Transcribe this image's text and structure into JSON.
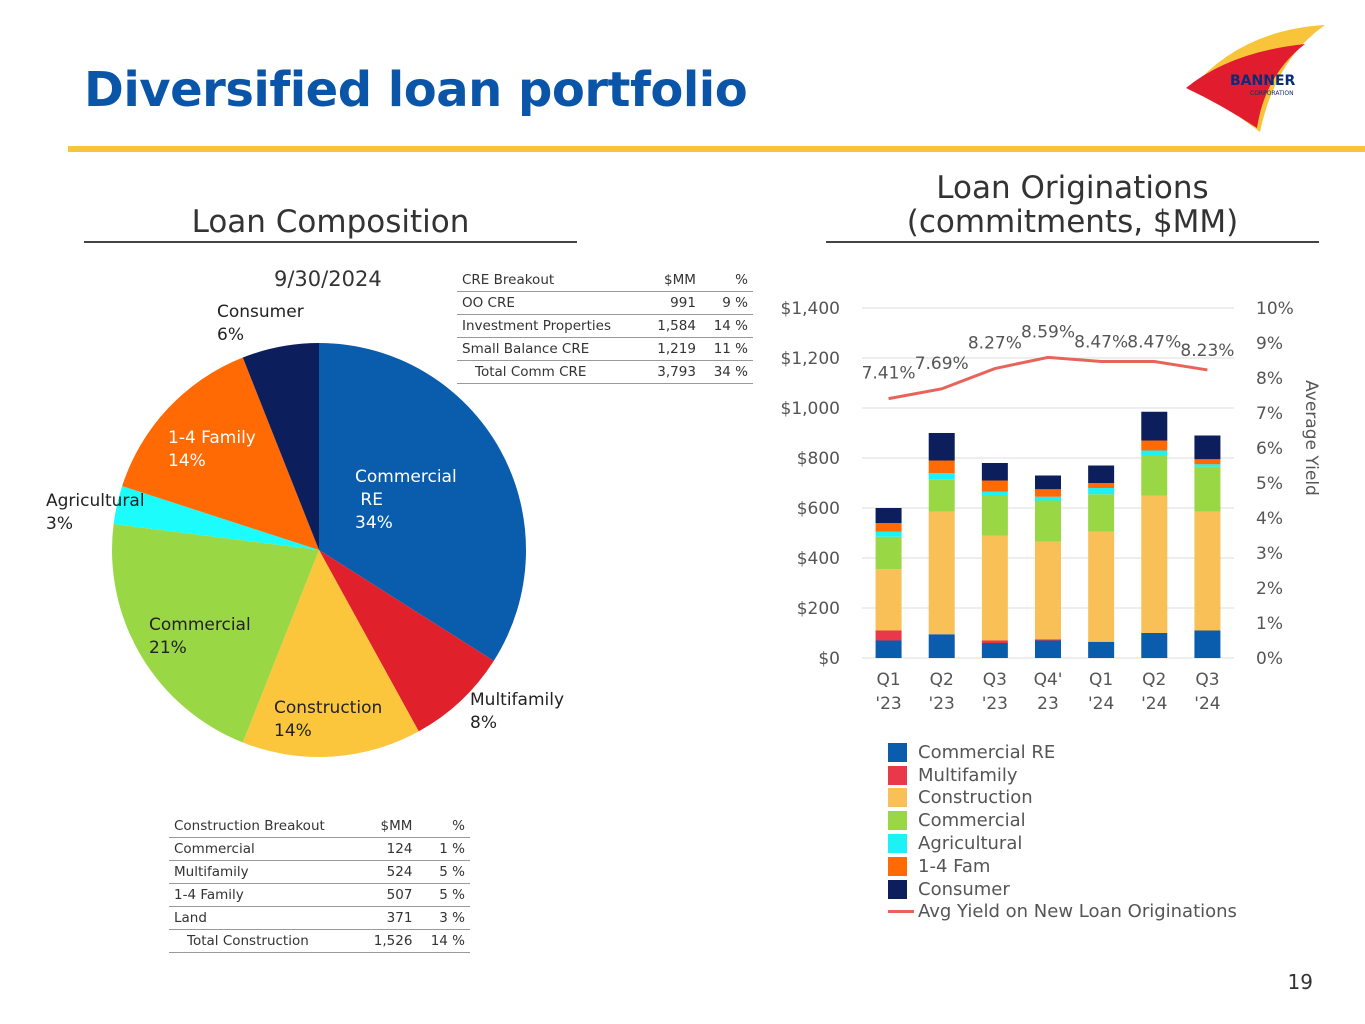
{
  "page": {
    "title": "Diversified loan portfolio",
    "page_number": "19",
    "logo_text": "BANNER",
    "logo_subtext": "CORPORATION",
    "accent": "#0a55a8",
    "rule_color": "#f8c53a"
  },
  "left": {
    "section_title": "Loan Composition",
    "date": "9/30/2024"
  },
  "right": {
    "section_title_line1": "Loan Originations",
    "section_title_line2": "(commitments, $MM)",
    "y2_title": "Average Yield",
    "line_legend": "Avg Yield on New Loan Originations"
  },
  "cre_table": {
    "headers": [
      "CRE Breakout",
      "$MM",
      "%"
    ],
    "rows": [
      [
        "OO CRE",
        "991",
        "9 %"
      ],
      [
        "Investment Properties",
        "1,584",
        "14 %"
      ],
      [
        "Small Balance CRE",
        "1,219",
        "11 %"
      ],
      [
        "Total Comm CRE",
        "3,793",
        "34 %"
      ]
    ]
  },
  "construction_table": {
    "headers": [
      "Construction Breakout",
      "$MM",
      "%"
    ],
    "rows": [
      [
        "Commercial",
        "124",
        "1 %"
      ],
      [
        "Multifamily",
        "524",
        "5 %"
      ],
      [
        "1-4 Family",
        "507",
        "5 %"
      ],
      [
        "Land",
        "371",
        "3 %"
      ],
      [
        "Total Construction",
        "1,526",
        "14 %"
      ]
    ]
  },
  "chart_data": [
    {
      "type": "pie",
      "title": "9/30/2024",
      "slices": [
        {
          "label_line1": "Commercial",
          "label_line2": " RE",
          "pct_label": "34%",
          "value": 34,
          "color": "#0a5cad"
        },
        {
          "label_line1": "Multifamily",
          "pct_label": "8%",
          "value": 8,
          "color": "#e0202a"
        },
        {
          "label_line1": "Construction",
          "pct_label": "14%",
          "value": 14,
          "color": "#fbc63c"
        },
        {
          "label_line1": "Commercial",
          "pct_label": "21%",
          "value": 21,
          "color": "#99d745"
        },
        {
          "label_line1": "Agricultural",
          "pct_label": "3%",
          "value": 3,
          "color": "#1cfcfc"
        },
        {
          "label_line1": "1-4 Family",
          "pct_label": "14%",
          "value": 14,
          "color": "#ff6a04"
        },
        {
          "label_line1": "Consumer",
          "pct_label": "6%",
          "value": 6,
          "color": "#0c1f5c"
        }
      ]
    },
    {
      "type": "bar",
      "stacked": true,
      "categories": [
        [
          "Q1",
          "'23"
        ],
        [
          "Q2",
          "'23"
        ],
        [
          "Q3",
          "'23"
        ],
        [
          "Q4'",
          "23"
        ],
        [
          "Q1",
          "'24"
        ],
        [
          "Q2",
          "'24"
        ],
        [
          "Q3",
          "'24"
        ]
      ],
      "ylim": [
        0,
        1400
      ],
      "y_ticks": [
        0,
        200,
        400,
        600,
        800,
        1000,
        1200,
        1400
      ],
      "y_tick_labels": [
        "$0",
        "$200",
        "$400",
        "$600",
        "$800",
        "$1,000",
        "$1,200",
        "$1,400"
      ],
      "y2_title": "Average Yield",
      "y2lim": [
        0,
        10
      ],
      "y2_tick_labels": [
        "0%",
        "1%",
        "2%",
        "3%",
        "4%",
        "5%",
        "6%",
        "7%",
        "8%",
        "9%",
        "10%"
      ],
      "grid": true,
      "legend_position": "bottom",
      "series": [
        {
          "name": "Commercial RE",
          "color": "#0a5cad",
          "values": [
            70,
            95,
            60,
            70,
            65,
            100,
            110
          ]
        },
        {
          "name": "Multifamily",
          "color": "#e8384a",
          "values": [
            40,
            0,
            10,
            5,
            0,
            0,
            0
          ]
        },
        {
          "name": "Construction",
          "color": "#f9c058",
          "values": [
            245,
            490,
            420,
            390,
            440,
            550,
            475
          ]
        },
        {
          "name": "Commercial",
          "color": "#99d745",
          "values": [
            130,
            130,
            160,
            165,
            150,
            160,
            180
          ]
        },
        {
          "name": "Agricultural",
          "color": "#1cf1f5",
          "values": [
            20,
            25,
            15,
            15,
            25,
            20,
            10
          ]
        },
        {
          "name": "1-4 Fam",
          "color": "#ff6a04",
          "values": [
            35,
            50,
            45,
            30,
            20,
            40,
            20
          ]
        },
        {
          "name": "Consumer",
          "color": "#0c1f5c",
          "values": [
            60,
            110,
            70,
            55,
            70,
            115,
            95
          ]
        }
      ],
      "line": {
        "name": "Avg Yield on New Loan Originations",
        "color": "#e8645a",
        "values": [
          7.41,
          7.69,
          8.27,
          8.59,
          8.47,
          8.47,
          8.23
        ],
        "labels": [
          "7.41%",
          "7.69%",
          "8.27%",
          "8.59%",
          "8.47%",
          "8.47%",
          "8.23%"
        ]
      }
    }
  ]
}
